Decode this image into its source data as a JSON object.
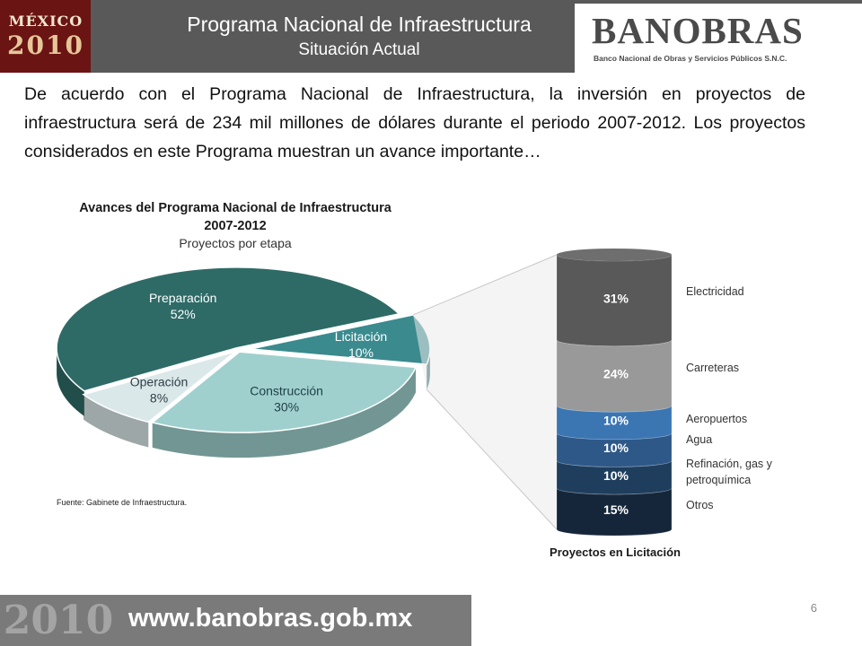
{
  "header": {
    "logo_top": "MÉXICO",
    "logo_bottom": "2010",
    "title": "Programa Nacional de Infraestructura",
    "subtitle": "Situación Actual",
    "brand_name": "BANOBRAS",
    "brand_tagline": "Banco Nacional de Obras y Servicios Públicos S.N.C."
  },
  "intro_text": "De acuerdo con el Programa Nacional de Infraestructura, la inversión en proyectos de  infraestructura será de 234 mil millones de dólares durante el periodo 2007-2012. Los proyectos considerados en este Programa muestran un avance importante…",
  "chart_data": [
    {
      "type": "pie",
      "title": "Avances del Programa Nacional de Infraestructura 2007-2012",
      "title_lines": [
        "Avances del Programa Nacional de Infraestructura",
        "2007-2012"
      ],
      "subtitle": "Proyectos por etapa",
      "slices": [
        {
          "name": "Licitación",
          "value": 10,
          "label": "10%",
          "color": "#3a8a8e",
          "text_color": "#ffffff"
        },
        {
          "name": "Construcción",
          "value": 30,
          "label": "30%",
          "color": "#9fd0ce",
          "text_color": "#1f3f46"
        },
        {
          "name": "Operación",
          "value": 8,
          "label": "8%",
          "color": "#dbe8ea",
          "text_color": "#2f3f46"
        },
        {
          "name": "Preparación",
          "value": 52,
          "label": "52%",
          "color": "#2e6b67",
          "text_color": "#ffffff"
        }
      ],
      "exploded": "Licitación",
      "source": "Fuente: Gabinete de Infraestructura."
    },
    {
      "type": "bar",
      "stacked": true,
      "title": "Proyectos en Licitación",
      "categories": [
        "Electricidad",
        "Carreteras",
        "Aeropuertos",
        "Agua",
        "Refinación, gas y petroquímica",
        "Otros"
      ],
      "values": [
        31,
        24,
        10,
        10,
        10,
        15
      ],
      "labels": [
        "31%",
        "24%",
        "10%",
        "10%",
        "10%",
        "15%"
      ],
      "colors": [
        "#595959",
        "#999999",
        "#3b76b3",
        "#2d5888",
        "#1f3e5e",
        "#15263a"
      ]
    }
  ],
  "footer": {
    "decoration": "2010",
    "url": "www.banobras.gob.mx",
    "page_number": "6"
  }
}
